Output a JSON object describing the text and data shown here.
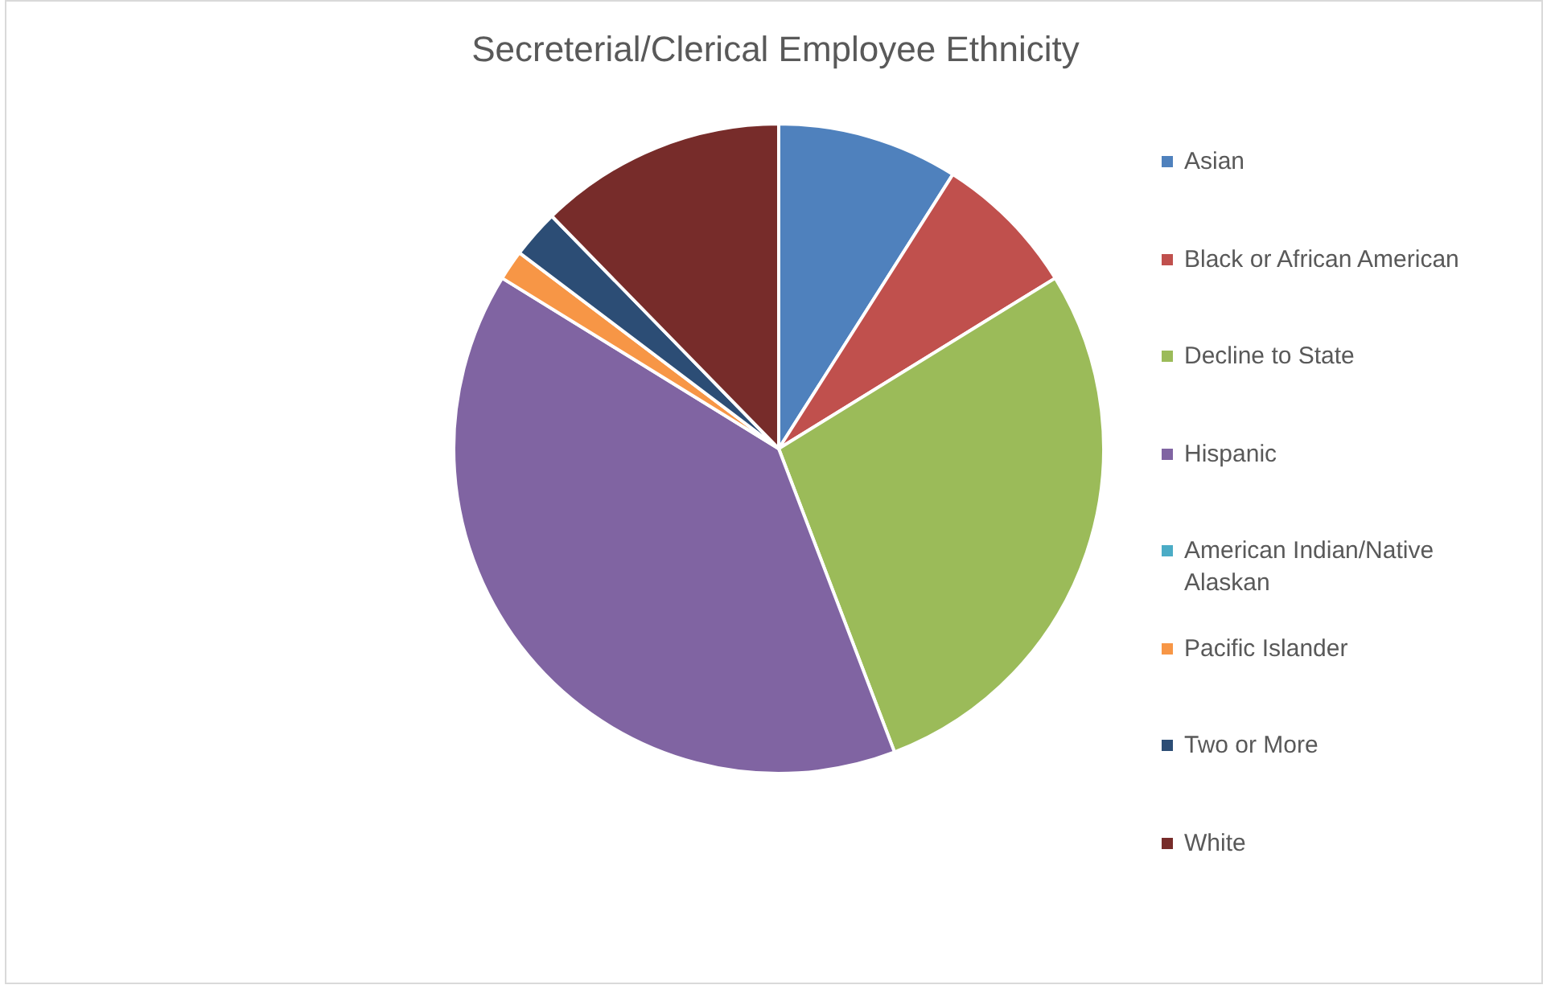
{
  "chart_data": {
    "type": "pie",
    "title": "Secreterial/Clerical Employee Ethnicity",
    "categories": [
      "Asian",
      "Black or African American",
      "Decline to State",
      "Hispanic",
      "American Indian/Native Alaskan",
      "Pacific Islander",
      "Two or More",
      "White"
    ],
    "values": [
      9.0,
      7.2,
      28.0,
      39.6,
      0,
      1.5,
      2.4,
      12.3
    ],
    "colors": [
      "#4f81bd",
      "#c0504d",
      "#9bbb59",
      "#8064a2",
      "#4bacc6",
      "#f79646",
      "#2c4d75",
      "#772c2a"
    ],
    "legend": "right"
  }
}
